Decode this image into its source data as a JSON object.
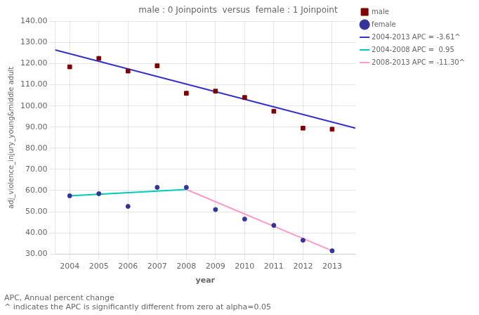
{
  "chart_data": {
    "type": "scatter",
    "title": "male : 0 Joinpoints  versus  female : 1 Joinpoint",
    "x_label": "year",
    "y_label": "adj_violence_injury_young&middle adult",
    "xlim": [
      2003.5,
      2013.8
    ],
    "ylim": [
      30.0,
      140.0
    ],
    "xticks": [
      2004,
      2005,
      2006,
      2007,
      2008,
      2009,
      2010,
      2011,
      2012,
      2013
    ],
    "yticks": [
      {
        "value": 30.0,
        "label": "30.00"
      },
      {
        "value": 40.0,
        "label": "40.00"
      },
      {
        "value": 50.0,
        "label": "50.00"
      },
      {
        "value": 60.0,
        "label": "60.00"
      },
      {
        "value": 70.0,
        "label": "70.00"
      },
      {
        "value": 80.0,
        "label": "80.00"
      },
      {
        "value": 90.0,
        "label": "90.00"
      },
      {
        "value": 100.0,
        "label": "100.00"
      },
      {
        "value": 110.0,
        "label": "110.00"
      },
      {
        "value": 120.0,
        "label": "120.00"
      },
      {
        "value": 130.0,
        "label": "130.00"
      },
      {
        "value": 140.0,
        "label": "140.00"
      }
    ],
    "grid": true,
    "legend": "upper right",
    "series": [
      {
        "name": "male",
        "type": "scatter",
        "marker": "square",
        "color": "#800000",
        "x": [
          2004,
          2005,
          2006,
          2007,
          2008,
          2009,
          2010,
          2011,
          2012,
          2013
        ],
        "values": [
          118.5,
          122.5,
          116.5,
          119.0,
          106.0,
          107.0,
          104.0,
          97.5,
          89.5,
          89.0
        ]
      },
      {
        "name": "2004-2013 APC = -3.61^",
        "type": "line",
        "line_style": "solid",
        "color": "#3333CC",
        "x": [
          2003.5,
          2013.8
        ],
        "values": [
          126.5,
          89.5
        ]
      },
      {
        "name": "female",
        "type": "scatter",
        "marker": "dot",
        "color": "#333399",
        "x": [
          2004,
          2005,
          2006,
          2007,
          2008,
          2009,
          2010,
          2011,
          2012,
          2013
        ],
        "values": [
          57.5,
          58.5,
          52.5,
          61.5,
          61.5,
          51.0,
          46.5,
          43.5,
          36.5,
          31.5
        ]
      },
      {
        "name": "2004-2008 APC =  0.95",
        "type": "line",
        "line_style": "solid",
        "color": "#00CCBB",
        "x": [
          2004,
          2008
        ],
        "values": [
          57.5,
          60.5
        ]
      },
      {
        "name": "2008-2013 APC = -11.30^",
        "type": "line",
        "line_style": "solid",
        "color": "#FF99CC",
        "x": [
          2008,
          2013
        ],
        "values": [
          60.5,
          31.5
        ]
      }
    ],
    "annotations": [
      "APC, Annual percent change",
      "^ indicates the APC is significantly different from zero at alpha=0.05"
    ]
  }
}
